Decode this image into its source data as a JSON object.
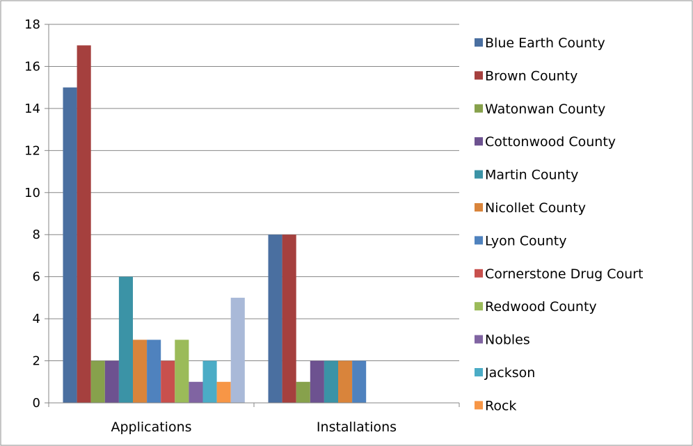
{
  "chart_data": {
    "type": "bar",
    "title": "",
    "xlabel": "",
    "ylabel": "",
    "categories": [
      "Applications",
      "Installations"
    ],
    "ylim": [
      0,
      18
    ],
    "yticks": [
      0,
      2,
      4,
      6,
      8,
      10,
      12,
      14,
      16,
      18
    ],
    "grid": true,
    "legend_position": "right",
    "series": [
      {
        "name": "Blue Earth County",
        "color": "#4A6FA0",
        "values": [
          15,
          8
        ]
      },
      {
        "name": "Brown County",
        "color": "#A5403E",
        "values": [
          17,
          8
        ]
      },
      {
        "name": "Watonwan County",
        "color": "#87A14C",
        "values": [
          2,
          1
        ]
      },
      {
        "name": "Cottonwood County",
        "color": "#6D5290",
        "values": [
          2,
          2
        ]
      },
      {
        "name": "Martin County",
        "color": "#3B93A6",
        "values": [
          6,
          2
        ]
      },
      {
        "name": "Nicollet County",
        "color": "#D9843B",
        "values": [
          3,
          2
        ]
      },
      {
        "name": "Lyon County",
        "color": "#4F82BE",
        "values": [
          3,
          2
        ]
      },
      {
        "name": "Cornerstone Drug Court",
        "color": "#C8504D",
        "values": [
          2,
          null
        ]
      },
      {
        "name": "Redwood County",
        "color": "#9BBB59",
        "values": [
          3,
          null
        ]
      },
      {
        "name": "Nobles",
        "color": "#8064A2",
        "values": [
          1,
          null
        ]
      },
      {
        "name": "Jackson",
        "color": "#4BACC6",
        "values": [
          2,
          null
        ]
      },
      {
        "name": "Rock",
        "color": "#F79646",
        "values": [
          1,
          null
        ]
      },
      {
        "color": "#A9B9D8",
        "values": [
          5,
          null
        ]
      }
    ]
  }
}
